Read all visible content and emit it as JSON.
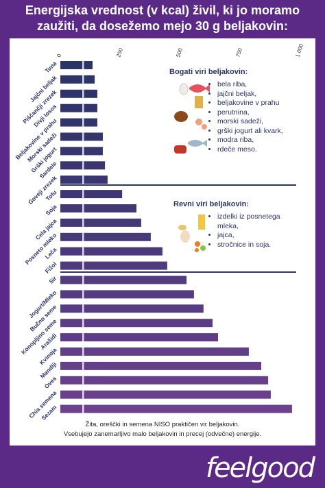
{
  "chart_data": {
    "type": "bar",
    "orientation": "horizontal",
    "title": "Energijska vrednost (v kcal) živil, ki jo moramo zaužiti, da dosežemo mejo 30 g beljakovin:",
    "categories": [
      "Tuna",
      "Jajčni beljak",
      "Piščančji zrezek",
      "Divji losos",
      "Beljakovine v prahu",
      "Morski sadeži",
      "Grški jogurt",
      "Sardele",
      "Goveji zrezek",
      "Tofu",
      "Soja",
      "Cela jajca",
      "Posneto mleko",
      "Leča",
      "Fižol",
      "Sir",
      "Jogurt/Mleko",
      "Bučno seme",
      "Konopljino seme",
      "Arašidi",
      "Kvinoja",
      "Mandlji",
      "Oves",
      "Chia semena",
      "Sezam"
    ],
    "values": [
      135,
      144,
      155,
      155,
      155,
      178,
      178,
      187,
      198,
      259,
      319,
      339,
      379,
      428,
      448,
      529,
      560,
      600,
      638,
      661,
      790,
      842,
      871,
      882,
      971
    ],
    "colors": [
      "#2b3467",
      "#2d3468",
      "#2e3469",
      "#30346a",
      "#32356b",
      "#35356d",
      "#37366e",
      "#393670",
      "#3b3671",
      "#3f3773",
      "#423875",
      "#453877",
      "#483979",
      "#4b397b",
      "#4e3a7d",
      "#523b7f",
      "#553b81",
      "#583c83",
      "#5b3d85",
      "#5e3d86",
      "#613e88",
      "#643f8a",
      "#673f8b",
      "#6a408d",
      "#6d418f"
    ],
    "xlim": [
      0,
      1000
    ],
    "xticks": [
      0,
      250,
      500,
      750,
      {
        "value": 1000,
        "label": "1.000"
      }
    ],
    "annotations": {
      "rich": {
        "title": "Bogati viri beljakovin:",
        "items": [
          "bela riba,",
          "jajčni beljak,",
          "beljakovine v prahu",
          "perutnina,",
          "morski sadeži,",
          "grški jogurt ali kvark,",
          "modra riba,",
          "rdeče meso."
        ]
      },
      "poor": {
        "title": "Revni viri beljakovin:",
        "items": [
          "izdelki iz posnetega mleka,",
          "jajca,",
          "stročnice in soja."
        ]
      }
    },
    "footnote": [
      "Žita, oreščki in semena NISO praktičen vir beljakovin.",
      "Vsebujejo zanemarljivo malo beljakovin in precej (odvečne) energije."
    ]
  },
  "logo": "feelgood"
}
